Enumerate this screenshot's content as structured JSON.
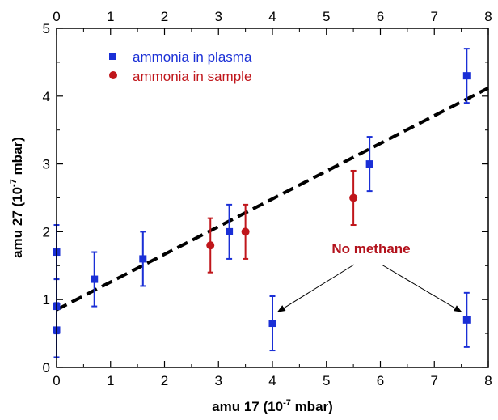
{
  "chart_data": {
    "type": "scatter",
    "xlabel": {
      "pre": "amu 17 (10",
      "sup": "-7",
      "post": " mbar)"
    },
    "ylabel": {
      "pre": "amu 27 (10",
      "sup": "-7",
      "post": " mbar)"
    },
    "xlim": [
      0,
      8
    ],
    "ylim": [
      0,
      5
    ],
    "x_ticks": [
      "0",
      "1",
      "2",
      "3",
      "4",
      "5",
      "6",
      "7",
      "8"
    ],
    "y_ticks": [
      "0",
      "1",
      "2",
      "3",
      "4",
      "5"
    ],
    "top_ticks": [
      "0",
      "1",
      "2",
      "3",
      "4",
      "5",
      "6",
      "7",
      "8"
    ],
    "grid": false,
    "legend_position": "top-left",
    "series": [
      {
        "name": "ammonia in plasma",
        "color": "#1a2fd6",
        "marker": "square",
        "points": [
          {
            "x": 0.0,
            "y": 1.7,
            "err": 0.4
          },
          {
            "x": 0.0,
            "y": 0.9,
            "err": 0.4
          },
          {
            "x": 0.0,
            "y": 0.55,
            "err": 0.4
          },
          {
            "x": 0.7,
            "y": 1.3,
            "err": 0.4
          },
          {
            "x": 1.6,
            "y": 1.6,
            "err": 0.4
          },
          {
            "x": 3.2,
            "y": 2.0,
            "err": 0.4
          },
          {
            "x": 4.0,
            "y": 0.65,
            "err": 0.4
          },
          {
            "x": 5.8,
            "y": 3.0,
            "err": 0.4
          },
          {
            "x": 7.6,
            "y": 4.3,
            "err": 0.4
          },
          {
            "x": 7.6,
            "y": 0.7,
            "err": 0.4
          }
        ]
      },
      {
        "name": "ammonia in sample",
        "color": "#c0161b",
        "marker": "circle",
        "points": [
          {
            "x": 2.85,
            "y": 1.8,
            "err": 0.4
          },
          {
            "x": 3.5,
            "y": 2.0,
            "err": 0.4
          },
          {
            "x": 5.5,
            "y": 2.5,
            "err": 0.4
          }
        ]
      }
    ],
    "fit_line": {
      "style": "dashed",
      "color": "#000000",
      "x": [
        0,
        8
      ],
      "y": [
        0.85,
        4.12
      ]
    },
    "annotation": {
      "text": "No methane",
      "color": "#b3121c",
      "targets": [
        {
          "x": 4.1,
          "y": 0.82
        },
        {
          "x": 7.5,
          "y": 0.82
        }
      ]
    }
  }
}
